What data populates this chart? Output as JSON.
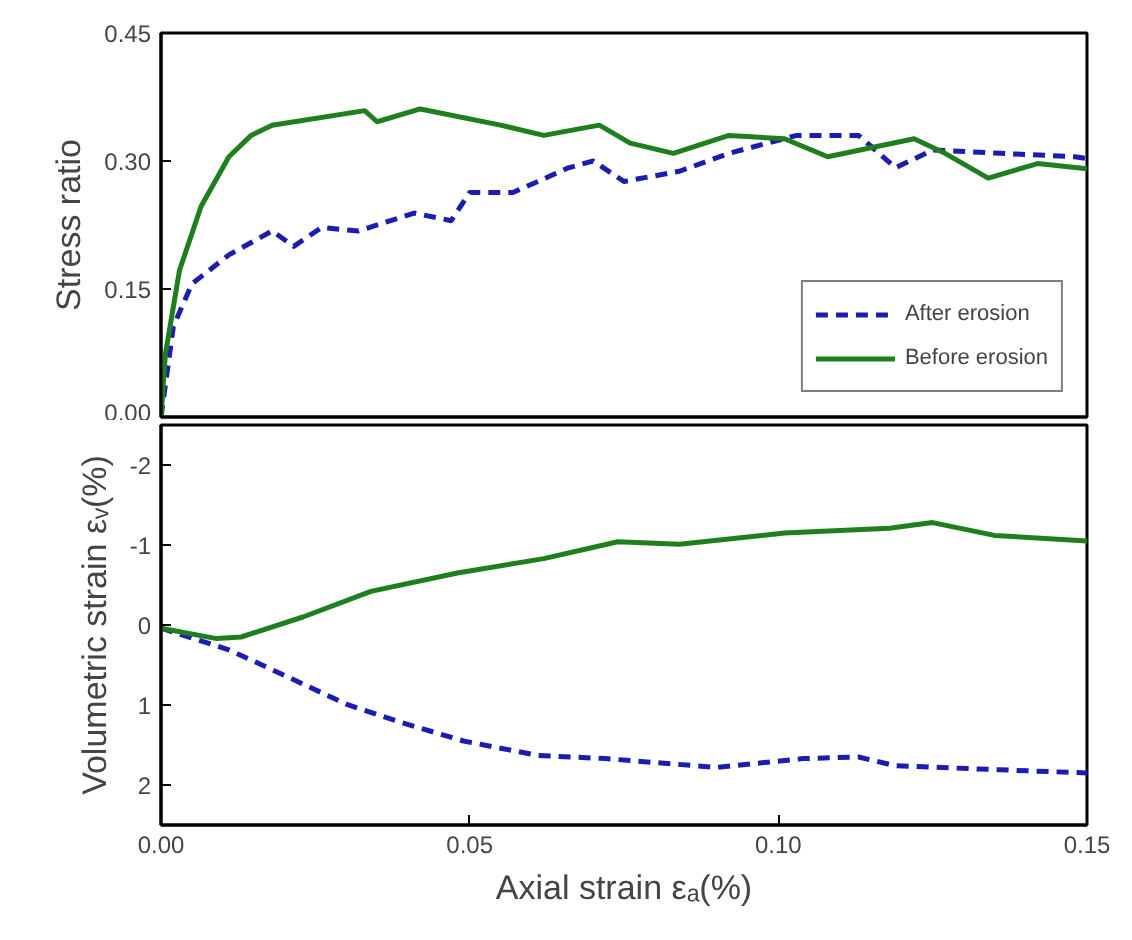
{
  "chart_data": [
    {
      "type": "line",
      "ylabel": "Stress ratio",
      "xlim": [
        0,
        0.15
      ],
      "ylim": [
        0,
        0.45
      ],
      "yticks": [
        {
          "value": 0,
          "label": "0.00"
        },
        {
          "value": 0.15,
          "label": "0.15"
        },
        {
          "value": 0.3,
          "label": "0.30"
        },
        {
          "value": 0.45,
          "label": "0.45"
        }
      ],
      "tick_labels": "y",
      "grid": false,
      "legend": "bottom right",
      "marker": "none",
      "series": [
        {
          "name": "After erosion",
          "color": "#1c1cb0",
          "line_style": "dashed",
          "x": [
            0,
            0.002,
            0.005,
            0.011,
            0.018,
            0.0215,
            0.026,
            0.032,
            0.041,
            0.047,
            0.05,
            0.057,
            0.066,
            0.07,
            0.075,
            0.084,
            0.092,
            0.103,
            0.113,
            0.119,
            0.125,
            0.136,
            0.148,
            0.15
          ],
          "values": [
            0,
            0.106,
            0.156,
            0.19,
            0.218,
            0.2,
            0.222,
            0.218,
            0.239,
            0.23,
            0.263,
            0.263,
            0.292,
            0.3,
            0.276,
            0.288,
            0.309,
            0.33,
            0.33,
            0.292,
            0.313,
            0.309,
            0.305,
            0.303
          ]
        },
        {
          "name": "Before erosion",
          "color": "#1f7f1f",
          "line_style": "solid",
          "x": [
            0,
            0.0007,
            0.003,
            0.0065,
            0.011,
            0.0146,
            0.018,
            0.033,
            0.035,
            0.042,
            0.055,
            0.062,
            0.071,
            0.076,
            0.083,
            0.092,
            0.101,
            0.108,
            0.122,
            0.127,
            0.134,
            0.142,
            0.15
          ],
          "values": [
            0,
            0.073,
            0.172,
            0.247,
            0.305,
            0.33,
            0.342,
            0.359,
            0.346,
            0.361,
            0.342,
            0.33,
            0.342,
            0.321,
            0.309,
            0.33,
            0.326,
            0.305,
            0.326,
            0.309,
            0.28,
            0.297,
            0.291
          ]
        }
      ]
    },
    {
      "type": "line",
      "xlabel": "Axial strain εₐ(%)",
      "ylabel": "Volumetric strain εᵥ(%)",
      "xlim": [
        0,
        0.15
      ],
      "xticks": [
        {
          "value": 0,
          "label": "0.00"
        },
        {
          "value": 0.05,
          "label": "0.05"
        },
        {
          "value": 0.1,
          "label": "0.10"
        },
        {
          "value": 0.15,
          "label": "0.15"
        }
      ],
      "ylim": [
        2.5,
        -2.5
      ],
      "yticks": [
        -2,
        -1,
        0,
        1,
        2
      ],
      "grid": false,
      "marker": "none",
      "series": [
        {
          "color": "#1c1cb0",
          "line_style": "dashed",
          "x": [
            0,
            0.011,
            0.02,
            0.03,
            0.039,
            0.049,
            0.061,
            0.072,
            0.09,
            0.104,
            0.113,
            0.119,
            0.136,
            0.15
          ],
          "values": [
            0.04,
            0.31,
            0.63,
            0.99,
            1.22,
            1.45,
            1.63,
            1.67,
            1.78,
            1.67,
            1.65,
            1.76,
            1.81,
            1.85
          ]
        },
        {
          "color": "#1f7f1f",
          "line_style": "solid",
          "x": [
            0,
            0.009,
            0.013,
            0.023,
            0.034,
            0.048,
            0.062,
            0.074,
            0.084,
            0.101,
            0.118,
            0.125,
            0.135,
            0.15
          ],
          "values": [
            0.04,
            0.17,
            0.15,
            -0.1,
            -0.42,
            -0.65,
            -0.83,
            -1.04,
            -1.01,
            -1.15,
            -1.21,
            -1.28,
            -1.12,
            -1.05
          ]
        }
      ]
    }
  ]
}
